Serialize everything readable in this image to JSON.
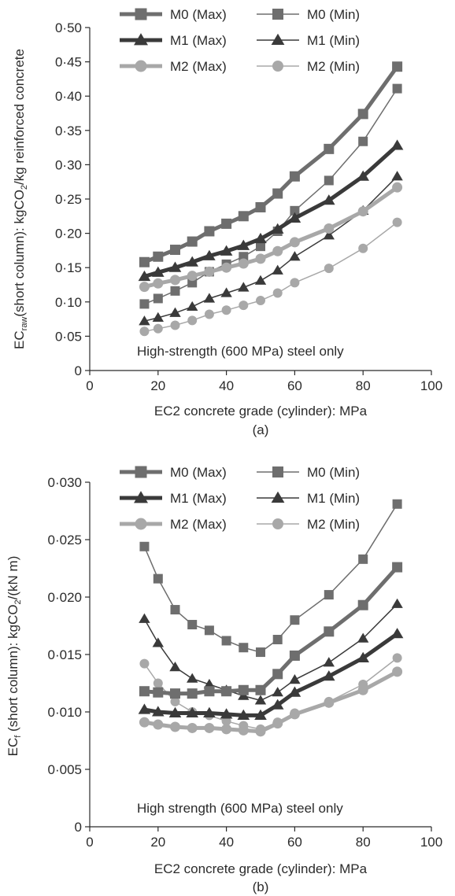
{
  "chart_data": [
    {
      "type": "line",
      "panel_label": "(a)",
      "ylabel_main": "EC",
      "ylabel_sub": "raw",
      "ylabel_rest": "(short column): kgCO",
      "ylabel_co2_sub": "2",
      "ylabel_tail": "/kg reinforced concrete",
      "xlabel": "EC2 concrete grade (cylinder): MPa",
      "annotation": "High-strength (600 MPa) steel only",
      "xlim": [
        0,
        100
      ],
      "ylim": [
        0,
        0.5
      ],
      "x_ticks": [
        0,
        20,
        40,
        60,
        80,
        100
      ],
      "x_tick_labels": [
        "0",
        "20",
        "40",
        "60",
        "80",
        "100"
      ],
      "y_ticks": [
        0,
        0.05,
        0.1,
        0.15,
        0.2,
        0.25,
        0.3,
        0.35,
        0.4,
        0.45,
        0.5
      ],
      "y_tick_labels": [
        "0",
        "0·05",
        "0·10",
        "0·15",
        "0·20",
        "0·25",
        "0·30",
        "0·35",
        "0·40",
        "0·45",
        "0·50"
      ],
      "legend_position": "top",
      "x": [
        16,
        20,
        25,
        30,
        35,
        40,
        45,
        50,
        55,
        60,
        70,
        80,
        90
      ],
      "series": [
        {
          "name": "M0 (Max)",
          "marker": "square",
          "color": "#6e6e6e",
          "width": 5,
          "values": [
            0.158,
            0.166,
            0.176,
            0.188,
            0.203,
            0.214,
            0.225,
            0.238,
            0.258,
            0.283,
            0.323,
            0.374,
            0.443
          ]
        },
        {
          "name": "M0 (Min)",
          "marker": "square",
          "color": "#6e6e6e",
          "width": 1.5,
          "values": [
            0.097,
            0.105,
            0.116,
            0.128,
            0.144,
            0.155,
            0.166,
            0.181,
            0.203,
            0.233,
            0.277,
            0.334,
            0.411
          ]
        },
        {
          "name": "M1 (Max)",
          "marker": "triangle",
          "color": "#3a3a3a",
          "width": 5,
          "values": [
            0.137,
            0.143,
            0.15,
            0.158,
            0.167,
            0.174,
            0.182,
            0.192,
            0.206,
            0.222,
            0.248,
            0.283,
            0.328
          ]
        },
        {
          "name": "M1 (Min)",
          "marker": "triangle",
          "color": "#3a3a3a",
          "width": 1.5,
          "values": [
            0.072,
            0.077,
            0.084,
            0.093,
            0.105,
            0.113,
            0.121,
            0.131,
            0.146,
            0.166,
            0.197,
            0.233,
            0.283
          ]
        },
        {
          "name": "M2 (Max)",
          "marker": "circle",
          "color": "#a8a8a8",
          "width": 5,
          "values": [
            0.122,
            0.127,
            0.132,
            0.138,
            0.144,
            0.15,
            0.156,
            0.163,
            0.174,
            0.187,
            0.207,
            0.232,
            0.267
          ]
        },
        {
          "name": "M2 (Min)",
          "marker": "circle",
          "color": "#a8a8a8",
          "width": 1.5,
          "values": [
            0.057,
            0.061,
            0.066,
            0.073,
            0.082,
            0.088,
            0.095,
            0.102,
            0.113,
            0.128,
            0.149,
            0.178,
            0.216
          ]
        }
      ]
    },
    {
      "type": "line",
      "panel_label": "(b)",
      "ylabel_main": "EC",
      "ylabel_sub": "f",
      "ylabel_rest": " (short column): kgCO",
      "ylabel_co2_sub": "2",
      "ylabel_tail": "/(kN m)",
      "xlabel": "EC2 concrete grade (cylinder): MPa",
      "annotation": "High strength (600 MPa) steel only",
      "xlim": [
        0,
        100
      ],
      "ylim": [
        0,
        0.03
      ],
      "x_ticks": [
        0,
        20,
        40,
        60,
        80,
        100
      ],
      "x_tick_labels": [
        "0",
        "20",
        "40",
        "60",
        "80",
        "100"
      ],
      "y_ticks": [
        0,
        0.005,
        0.01,
        0.015,
        0.02,
        0.025,
        0.03
      ],
      "y_tick_labels": [
        "0",
        "0·005",
        "0·010",
        "0·015",
        "0·020",
        "0·025",
        "0·030"
      ],
      "legend_position": "top",
      "x": [
        16,
        20,
        25,
        30,
        35,
        40,
        45,
        50,
        55,
        60,
        70,
        80,
        90
      ],
      "series": [
        {
          "name": "M0 (Max)",
          "marker": "square",
          "color": "#6e6e6e",
          "width": 5,
          "values": [
            0.0118,
            0.0117,
            0.0116,
            0.0116,
            0.0118,
            0.0118,
            0.0119,
            0.0119,
            0.0133,
            0.0149,
            0.017,
            0.0193,
            0.0226
          ]
        },
        {
          "name": "M0 (Min)",
          "marker": "square",
          "color": "#6e6e6e",
          "width": 1.5,
          "values": [
            0.0244,
            0.0216,
            0.0189,
            0.0176,
            0.0171,
            0.0162,
            0.0156,
            0.0152,
            0.0163,
            0.018,
            0.0202,
            0.0233,
            0.0281
          ]
        },
        {
          "name": "M1 (Max)",
          "marker": "triangle",
          "color": "#3a3a3a",
          "width": 5,
          "values": [
            0.0102,
            0.01,
            0.0099,
            0.0099,
            0.0099,
            0.0098,
            0.0097,
            0.0097,
            0.0106,
            0.0117,
            0.0131,
            0.0147,
            0.0168
          ]
        },
        {
          "name": "M1 (Min)",
          "marker": "triangle",
          "color": "#3a3a3a",
          "width": 1.5,
          "values": [
            0.0181,
            0.016,
            0.0139,
            0.0129,
            0.0124,
            0.0119,
            0.0114,
            0.011,
            0.0117,
            0.0128,
            0.0143,
            0.0164,
            0.0194
          ]
        },
        {
          "name": "M2 (Max)",
          "marker": "circle",
          "color": "#a8a8a8",
          "width": 5,
          "values": [
            0.0091,
            0.0089,
            0.0087,
            0.0086,
            0.0086,
            0.0085,
            0.0084,
            0.0083,
            0.009,
            0.0098,
            0.0108,
            0.0119,
            0.0135
          ]
        },
        {
          "name": "M2 (Min)",
          "marker": "circle",
          "color": "#a8a8a8",
          "width": 1.5,
          "values": [
            0.0142,
            0.0125,
            0.0109,
            0.01,
            0.0097,
            0.0092,
            0.0088,
            0.0085,
            0.0091,
            0.0099,
            0.0109,
            0.0124,
            0.0147
          ]
        }
      ]
    }
  ]
}
